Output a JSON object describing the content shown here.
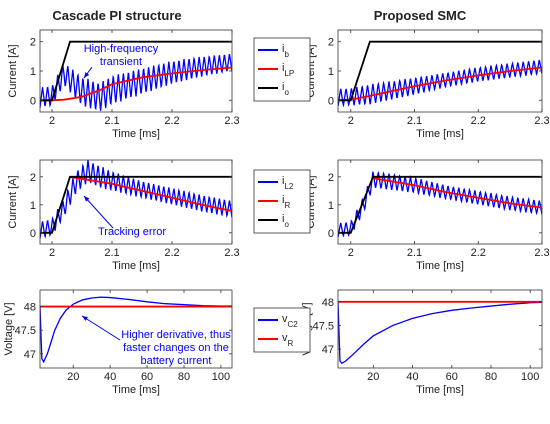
{
  "colors": {
    "ib": "#0000ff",
    "ilp": "#ff0000",
    "io": "#000000",
    "axis": "#333333",
    "annot": "#0000ff"
  },
  "columns": [
    {
      "title": "Cascade PI structure"
    },
    {
      "title": "Proposed SMC"
    }
  ],
  "chart_data": [
    {
      "type": "line",
      "title": "Cascade PI structure",
      "xlabel": "Time [ms]",
      "ylabel": "Current [A]",
      "xlim": [
        1.98,
        2.3
      ],
      "ylim": [
        -0.4,
        2.4
      ],
      "xticks": [
        2,
        2.1,
        2.2,
        2.3
      ],
      "xtick_labels": [
        "2",
        "2.1",
        "2.2",
        "2.3"
      ],
      "yticks": [
        0,
        1,
        2
      ],
      "ytick_labels": [
        "0",
        "1",
        "2"
      ],
      "legend": [
        "i_b",
        "i_LP",
        "i_o"
      ],
      "annotations": [
        {
          "text": [
            "High-frequency",
            "transient"
          ]
        }
      ],
      "series": [
        {
          "name": "i_b",
          "x": [
            1.98,
            2.0,
            2.02,
            2.05,
            2.08,
            2.1,
            2.15,
            2.2,
            2.25,
            2.3
          ],
          "y": [
            0.1,
            0.15,
            0.9,
            0.3,
            0.1,
            0.35,
            0.65,
            0.95,
            1.15,
            1.3
          ],
          "ripple": [
            0.35,
            0.35,
            0.4,
            0.5,
            0.5,
            0.5,
            0.45,
            0.4,
            0.35,
            0.3
          ]
        },
        {
          "name": "i_LP",
          "x": [
            1.98,
            2.0,
            2.02,
            2.05,
            2.08,
            2.1,
            2.15,
            2.2,
            2.25,
            2.3
          ],
          "y": [
            0.0,
            0.0,
            0.02,
            0.12,
            0.35,
            0.55,
            0.78,
            0.92,
            1.03,
            1.12
          ]
        },
        {
          "name": "i_o",
          "x": [
            1.98,
            2.0,
            2.03,
            2.3
          ],
          "y": [
            0.0,
            0.0,
            2.0,
            2.0
          ]
        }
      ]
    },
    {
      "type": "line",
      "title": "Proposed SMC",
      "xlabel": "Time [ms]",
      "ylabel": "Current [A]",
      "xlim": [
        1.98,
        2.3
      ],
      "ylim": [
        -0.4,
        2.4
      ],
      "xticks": [
        2,
        2.1,
        2.2,
        2.3
      ],
      "xtick_labels": [
        "2",
        "2.1",
        "2.2",
        "2.3"
      ],
      "yticks": [
        0,
        1,
        2
      ],
      "ytick_labels": [
        "0",
        "1",
        "2"
      ],
      "series": [
        {
          "name": "i_b",
          "x": [
            1.98,
            2.0,
            2.03,
            2.1,
            2.15,
            2.2,
            2.25,
            2.3
          ],
          "y": [
            0.1,
            0.12,
            0.2,
            0.48,
            0.7,
            0.88,
            1.02,
            1.15
          ],
          "ripple": [
            0.3,
            0.3,
            0.35,
            0.3,
            0.25,
            0.25,
            0.25,
            0.25
          ]
        },
        {
          "name": "i_LP",
          "x": [
            1.98,
            2.0,
            2.03,
            2.1,
            2.15,
            2.2,
            2.25,
            2.3
          ],
          "y": [
            0.0,
            0.02,
            0.15,
            0.48,
            0.68,
            0.85,
            1.0,
            1.12
          ]
        },
        {
          "name": "i_o",
          "x": [
            1.98,
            2.0,
            2.03,
            2.3
          ],
          "y": [
            0.0,
            0.0,
            2.0,
            2.0
          ]
        }
      ]
    },
    {
      "type": "line",
      "xlabel": "Time [ms]",
      "ylabel": "Current [A]",
      "xlim": [
        1.98,
        2.3
      ],
      "ylim": [
        -0.4,
        2.6
      ],
      "xticks": [
        2,
        2.1,
        2.2,
        2.3
      ],
      "xtick_labels": [
        "2",
        "2.1",
        "2.2",
        "2.3"
      ],
      "yticks": [
        0,
        1,
        2
      ],
      "ytick_labels": [
        "0",
        "1",
        "2"
      ],
      "legend": [
        "i_L2",
        "i_R",
        "i_o"
      ],
      "annotations": [
        {
          "text": [
            "Tracking error"
          ]
        }
      ],
      "series": [
        {
          "name": "i_L2",
          "x": [
            1.98,
            2.0,
            2.02,
            2.04,
            2.06,
            2.08,
            2.1,
            2.15,
            2.2,
            2.25,
            2.3
          ],
          "y": [
            0.1,
            0.2,
            0.9,
            1.8,
            2.2,
            2.0,
            1.85,
            1.55,
            1.3,
            1.05,
            0.85
          ],
          "ripple": [
            0.3,
            0.3,
            0.35,
            0.4,
            0.4,
            0.4,
            0.35,
            0.3,
            0.3,
            0.3,
            0.3
          ]
        },
        {
          "name": "i_R",
          "x": [
            2.03,
            2.1,
            2.15,
            2.2,
            2.25,
            2.3
          ],
          "y": [
            2.0,
            1.75,
            1.5,
            1.25,
            1.0,
            0.78
          ]
        },
        {
          "name": "i_o",
          "x": [
            1.98,
            2.0,
            2.03,
            2.3
          ],
          "y": [
            0.0,
            0.0,
            2.0,
            2.0
          ]
        }
      ]
    },
    {
      "type": "line",
      "xlabel": "Time [ms]",
      "ylabel": "Current [A]",
      "xlim": [
        1.98,
        2.3
      ],
      "ylim": [
        -0.4,
        2.6
      ],
      "xticks": [
        2,
        2.1,
        2.2,
        2.3
      ],
      "xtick_labels": [
        "2",
        "2.1",
        "2.2",
        "2.3"
      ],
      "yticks": [
        0,
        1,
        2
      ],
      "ytick_labels": [
        "0",
        "1",
        "2"
      ],
      "series": [
        {
          "name": "i_L2",
          "x": [
            1.98,
            2.0,
            2.02,
            2.035,
            2.1,
            2.15,
            2.2,
            2.25,
            2.3
          ],
          "y": [
            0.1,
            0.15,
            1.0,
            1.9,
            1.7,
            1.45,
            1.25,
            1.05,
            0.9
          ],
          "ripple": [
            0.25,
            0.25,
            0.3,
            0.3,
            0.28,
            0.25,
            0.25,
            0.25,
            0.25
          ]
        },
        {
          "name": "i_R",
          "x": [
            2.035,
            2.1,
            2.15,
            2.2,
            2.25,
            2.3
          ],
          "y": [
            1.95,
            1.7,
            1.45,
            1.25,
            1.05,
            0.9
          ]
        },
        {
          "name": "i_o",
          "x": [
            1.98,
            2.0,
            2.035,
            2.3
          ],
          "y": [
            0.0,
            0.0,
            2.0,
            2.0
          ]
        }
      ]
    },
    {
      "type": "line",
      "xlabel": "Time [ms]",
      "ylabel": "Voltage [V]",
      "xlim": [
        2,
        106
      ],
      "ylim": [
        46.7,
        48.35
      ],
      "xticks": [
        20,
        40,
        60,
        80,
        100
      ],
      "xtick_labels": [
        "20",
        "40",
        "60",
        "80",
        "100"
      ],
      "yticks": [
        47,
        47.5,
        48
      ],
      "ytick_labels": [
        "47",
        "47.5",
        "48"
      ],
      "legend": [
        "v_C2",
        "v_R"
      ],
      "annotations": [
        {
          "text": [
            "Higher derivative, thus",
            "faster changes on the",
            "battery current"
          ]
        }
      ],
      "series": [
        {
          "name": "v_C2",
          "x": [
            2,
            3,
            4,
            6,
            8,
            10,
            13,
            16,
            20,
            25,
            30,
            35,
            40,
            50,
            60,
            70,
            80,
            90,
            100,
            106
          ],
          "y": [
            48.0,
            46.9,
            46.83,
            47.0,
            47.25,
            47.5,
            47.75,
            47.92,
            48.05,
            48.14,
            48.18,
            48.2,
            48.19,
            48.15,
            48.1,
            48.06,
            48.04,
            48.02,
            48.01,
            48.01
          ]
        },
        {
          "name": "v_R",
          "x": [
            2,
            106
          ],
          "y": [
            48.0,
            48.0
          ]
        }
      ]
    },
    {
      "type": "line",
      "xlabel": "Time [ms]",
      "ylabel": "Voltage [V]",
      "xlim": [
        2,
        106
      ],
      "ylim": [
        46.6,
        48.25
      ],
      "xticks": [
        20,
        40,
        60,
        80,
        100
      ],
      "xtick_labels": [
        "20",
        "40",
        "60",
        "80",
        "100"
      ],
      "yticks": [
        47,
        47.5,
        48
      ],
      "ytick_labels": [
        "47",
        "47.5",
        "48"
      ],
      "series": [
        {
          "name": "v_C2",
          "x": [
            2,
            3,
            4,
            6,
            10,
            15,
            20,
            30,
            40,
            50,
            60,
            70,
            80,
            90,
            100,
            106
          ],
          "y": [
            48.0,
            46.75,
            46.7,
            46.75,
            46.9,
            47.1,
            47.28,
            47.5,
            47.65,
            47.75,
            47.82,
            47.87,
            47.91,
            47.95,
            47.98,
            47.99
          ]
        },
        {
          "name": "v_R",
          "x": [
            2,
            106
          ],
          "y": [
            48.0,
            48.0
          ]
        }
      ]
    }
  ]
}
